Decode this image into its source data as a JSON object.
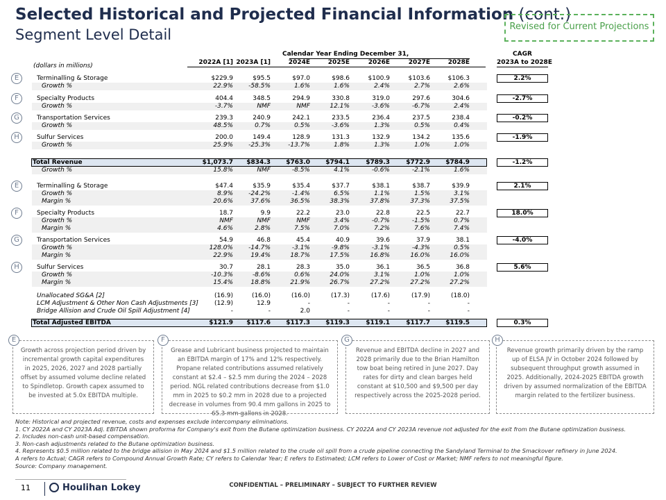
{
  "header": {
    "title": "Selected Historical and Projected Financial Information",
    "title_suffix": "(cont.)",
    "subtitle": "Segment Level Detail",
    "badge": "Revised for Current Projections"
  },
  "table": {
    "units": "(dollars in millions)",
    "period_header": "Calendar Year Ending December 31,",
    "cagr_header": [
      "CAGR",
      "2023A to 2028E"
    ],
    "columns": [
      "2022A [1]",
      "2023A [1]",
      "2024E",
      "2025E",
      "2026E",
      "2027E",
      "2028E"
    ],
    "revenue_segments": [
      {
        "letter": "E",
        "name": "Terminalling & Storage",
        "values": [
          "$229.9",
          "$95.5",
          "$97.0",
          "$98.6",
          "$100.9",
          "$103.6",
          "$106.3"
        ],
        "cagr": "2.2%",
        "growth": {
          "label": "Growth %",
          "values": [
            "22.9%",
            "-58.5%",
            "1.6%",
            "1.6%",
            "2.4%",
            "2.7%",
            "2.6%"
          ]
        }
      },
      {
        "letter": "F",
        "name": "Specialty Products",
        "values": [
          "404.4",
          "348.5",
          "294.9",
          "330.8",
          "319.0",
          "297.6",
          "304.6"
        ],
        "cagr": "-2.7%",
        "growth": {
          "label": "Growth %",
          "values": [
            "-3.7%",
            "NMF",
            "NMF",
            "12.1%",
            "-3.6%",
            "-6.7%",
            "2.4%"
          ]
        }
      },
      {
        "letter": "G",
        "name": "Transportation Services",
        "values": [
          "239.3",
          "240.9",
          "242.1",
          "233.5",
          "236.4",
          "237.5",
          "238.4"
        ],
        "cagr": "-0.2%",
        "growth": {
          "label": "Growth %",
          "values": [
            "48.5%",
            "0.7%",
            "0.5%",
            "-3.6%",
            "1.3%",
            "0.5%",
            "0.4%"
          ]
        }
      },
      {
        "letter": "H",
        "name": "Sulfur Services",
        "values": [
          "200.0",
          "149.4",
          "128.9",
          "131.3",
          "132.9",
          "134.2",
          "135.6"
        ],
        "cagr": "-1.9%",
        "growth": {
          "label": "Growth %",
          "values": [
            "25.9%",
            "-25.3%",
            "-13.7%",
            "1.8%",
            "1.3%",
            "1.0%",
            "1.0%"
          ]
        }
      }
    ],
    "total_revenue": {
      "name": "Total Revenue",
      "values": [
        "$1,073.7",
        "$834.3",
        "$763.0",
        "$794.1",
        "$789.3",
        "$772.9",
        "$784.9"
      ],
      "cagr": "-1.2%",
      "growth": {
        "label": "Growth %",
        "values": [
          "15.8%",
          "NMF",
          "-8.5%",
          "4.1%",
          "-0.6%",
          "-2.1%",
          "1.6%"
        ]
      }
    },
    "ebitda_segments": [
      {
        "letter": "E",
        "name": "Terminalling & Storage",
        "values": [
          "$47.4",
          "$35.9",
          "$35.4",
          "$37.7",
          "$38.1",
          "$38.7",
          "$39.9"
        ],
        "cagr": "2.1%",
        "growth": {
          "label": "Growth %",
          "values": [
            "8.9%",
            "-24.2%",
            "-1.4%",
            "6.5%",
            "1.1%",
            "1.5%",
            "3.1%"
          ]
        },
        "margin": {
          "label": "Margin %",
          "values": [
            "20.6%",
            "37.6%",
            "36.5%",
            "38.3%",
            "37.8%",
            "37.3%",
            "37.5%"
          ]
        }
      },
      {
        "letter": "F",
        "name": "Specialty Products",
        "values": [
          "18.7",
          "9.9",
          "22.2",
          "23.0",
          "22.8",
          "22.5",
          "22.7"
        ],
        "cagr": "18.0%",
        "growth": {
          "label": "Growth %",
          "values": [
            "NMF",
            "NMF",
            "NMF",
            "3.4%",
            "-0.7%",
            "-1.5%",
            "0.7%"
          ]
        },
        "margin": {
          "label": "Margin %",
          "values": [
            "4.6%",
            "2.8%",
            "7.5%",
            "7.0%",
            "7.2%",
            "7.6%",
            "7.4%"
          ]
        }
      },
      {
        "letter": "G",
        "name": "Transportation Services",
        "values": [
          "54.9",
          "46.8",
          "45.4",
          "40.9",
          "39.6",
          "37.9",
          "38.1"
        ],
        "cagr": "-4.0%",
        "growth": {
          "label": "Growth %",
          "values": [
            "128.0%",
            "-14.7%",
            "-3.1%",
            "-9.8%",
            "-3.1%",
            "-4.3%",
            "0.5%"
          ]
        },
        "margin": {
          "label": "Margin %",
          "values": [
            "22.9%",
            "19.4%",
            "18.7%",
            "17.5%",
            "16.8%",
            "16.0%",
            "16.0%"
          ]
        }
      },
      {
        "letter": "H",
        "name": "Sulfur Services",
        "values": [
          "30.7",
          "28.1",
          "28.3",
          "35.0",
          "36.1",
          "36.5",
          "36.8"
        ],
        "cagr": "5.6%",
        "growth": {
          "label": "Growth %",
          "values": [
            "-10.3%",
            "-8.6%",
            "0.6%",
            "24.0%",
            "3.1%",
            "1.0%",
            "1.0%"
          ]
        },
        "margin": {
          "label": "Margin %",
          "values": [
            "15.4%",
            "18.8%",
            "21.9%",
            "26.7%",
            "27.2%",
            "27.2%",
            "27.2%"
          ]
        }
      }
    ],
    "adjustments": [
      {
        "name": "Unallocated SG&A [2]",
        "values": [
          "(16.9)",
          "(16.0)",
          "(16.0)",
          "(17.3)",
          "(17.6)",
          "(17.9)",
          "(18.0)"
        ]
      },
      {
        "name": "LCM Adjustment & Other Non Cash Adjustments [3]",
        "values": [
          "(12.9)",
          "12.9",
          "-",
          "-",
          "-",
          "-",
          "-"
        ]
      },
      {
        "name": "Bridge Allision and Crude Oil Spill Adjustment [4]",
        "values": [
          "-",
          "-",
          "2.0",
          "-",
          "-",
          "-",
          "-"
        ]
      }
    ],
    "total_ebitda": {
      "name": "Total Adjusted EBITDA",
      "values": [
        "$121.9",
        "$117.6",
        "$117.3",
        "$119.3",
        "$119.1",
        "$117.7",
        "$119.5"
      ],
      "cagr": "0.3%"
    }
  },
  "commentary": [
    {
      "letter": "E",
      "text": "Growth across projection period driven by incremental growth capital expenditures in 2025, 2026, 2027 and 2028 partially offset by assumed volume decline related to Spindletop. Growth capex assumed to be invested at 5.0x EBITDA multiple."
    },
    {
      "letter": "F",
      "text": "Grease and Lubricant business projected to maintain an EBITDA margin of 17% and 12% respectively. Propane related contributions assumed relatively constant at $2.4 – $2.5 mm during the 2024 – 2028 period. NGL related contributions decrease from $1.0 mm in 2025 to $0.2 mm in 2028 due to a projected decrease in volumes from 90.4 mm gallons in 2025 to 65.3 mm gallons in 2028."
    },
    {
      "letter": "G",
      "text": "Revenue and EBITDA decline in 2027 and 2028 primarily due to the Brian Hamilton tow boat being retired in June 2027. Day rates for dirty and clean barges held constant at $10,500 and $9,500 per day respectively across the 2025-2028 period."
    },
    {
      "letter": "H",
      "text": "Revenue growth primarily driven by the ramp up of ELSA JV in October 2024 followed by subsequent throughput growth assumed in 2025. Additionally, 2024-2025 EBITDA growth driven by assumed normalization of the EBITDA margin related to the fertilizer business."
    }
  ],
  "notes": [
    "Note: Historical and projected revenue, costs and expenses exclude intercompany eliminations.",
    "1. CY 2022A and CY 2023A Adj. EBITDA shown proforma for Company's exit from the Butane optimization business. CY 2022A and CY 2023A revenue not adjusted for the exit from the Butane optimization business.",
    "2. Includes non-cash unit-based compensation.",
    "3. Non-cash adjustments related to the Butane optimization business.",
    "4. Represents $0.5 million related to the bridge allision in May 2024 and $1.5 million related to the crude oil spill from a crude pipeline connecting the Sandyland Terminal to the Smackover refinery in June 2024.",
    "A refers to Actual; CAGR refers to Compound Annual Growth Rate; CY refers to Calendar Year; E refers to Estimated; LCM refers to Lower of Cost or Market; NMF refers to not meaningful figure.",
    "Source: Company management."
  ],
  "footer": {
    "page": "11",
    "brand": "Houlihan Lokey",
    "confidentiality": "CONFIDENTIAL – PRELIMINARY – SUBJECT TO FURTHER REVIEW"
  }
}
